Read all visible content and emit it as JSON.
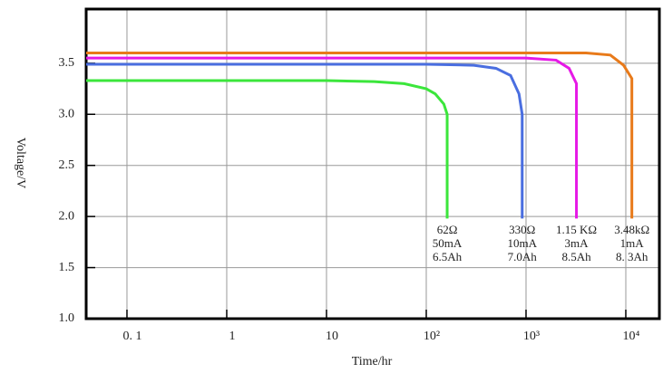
{
  "chart_data": {
    "type": "line",
    "x_label": "Time/hr",
    "y_label": "Voltage/V",
    "xlim": [
      0.039,
      21700
    ],
    "xscale": "log",
    "xticks": [
      {
        "value": 0.1,
        "label": "0. 1"
      },
      1,
      10,
      {
        "value": 100,
        "label": "10²"
      },
      {
        "value": 1000,
        "label": "10³"
      },
      {
        "value": 10000,
        "label": "10⁴"
      }
    ],
    "ylim": [
      1.0,
      4.03
    ],
    "yticks": [
      {
        "value": 1.0,
        "label": "1.0"
      },
      1.5,
      {
        "value": 2.0,
        "label": "2.0"
      },
      2.5,
      {
        "value": 3.0,
        "label": "3.0"
      },
      3.5
    ],
    "grid": true,
    "series": [
      {
        "name": "62Ω",
        "color": "#3be63b",
        "x": [
          0.039,
          10,
          30,
          60,
          100,
          123,
          150,
          162,
          162
        ],
        "values": [
          3.33,
          3.33,
          3.32,
          3.3,
          3.25,
          3.2,
          3.1,
          3.0,
          1.98
        ],
        "label": [
          "62Ω",
          "50mA",
          "6.5Ah"
        ]
      },
      {
        "name": "330Ω",
        "color": "#4a6ee0",
        "x": [
          0.039,
          100,
          300,
          500,
          700,
          850,
          915,
          915
        ],
        "values": [
          3.49,
          3.49,
          3.48,
          3.45,
          3.38,
          3.2,
          3.0,
          1.98
        ],
        "label": [
          "330Ω",
          "10mA",
          "7.0Ah"
        ]
      },
      {
        "name": "1.15 KΩ",
        "color": "#e619e6",
        "x": [
          0.039,
          1000,
          2000,
          2700,
          3200,
          3200
        ],
        "values": [
          3.55,
          3.55,
          3.53,
          3.45,
          3.3,
          1.98
        ],
        "label": [
          "1.15 KΩ",
          "3mA",
          "8.5Ah"
        ]
      },
      {
        "name": "3.48kΩ",
        "color": "#e87a1a",
        "x": [
          0.039,
          4000,
          7000,
          9500,
          11500,
          11500
        ],
        "values": [
          3.6,
          3.6,
          3.58,
          3.48,
          3.35,
          1.98
        ],
        "label": [
          "3.48kΩ",
          "1mA",
          "8. 3Ah"
        ]
      }
    ]
  }
}
